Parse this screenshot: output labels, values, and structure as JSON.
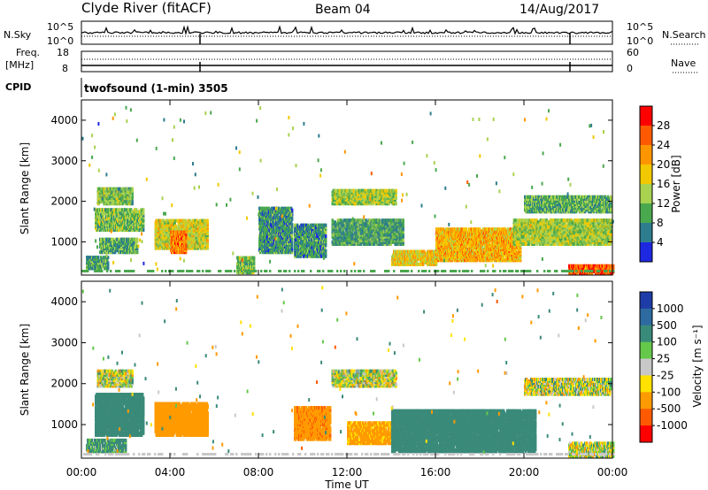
{
  "header": {
    "station": "Clyde River (fitACF)",
    "beam": "Beam 04",
    "date": "14/Aug/2017"
  },
  "top_panels": {
    "nsky_label": "N.Sky",
    "nsky_ticks": [
      "10^5",
      "10^0"
    ],
    "nsky_right_ticks": [
      "10^5",
      "10^0"
    ],
    "nsearch_label": "N.Search",
    "freq_label": "Freq.",
    "freq_unit": "[MHz]",
    "freq_ticks": [
      "18",
      "8"
    ],
    "nave_ticks": [
      "60",
      "0"
    ],
    "nave_label": "Nave",
    "cpid_label": "CPID",
    "cpid_text": "twofsound (1-min) 3505"
  },
  "power_colorbar": {
    "title": "Power [dB]",
    "ticks": [
      "28",
      "24",
      "20",
      "16",
      "12",
      "8",
      "4"
    ],
    "colors": [
      "#ff0000",
      "#ff5a00",
      "#ff9600",
      "#f2c800",
      "#a8d250",
      "#4aa84e",
      "#2d7d8e",
      "#1e28e0"
    ]
  },
  "velocity_colorbar": {
    "title": "Velocity [m s⁻¹]",
    "ticks": [
      "1000",
      "500",
      "100",
      "25",
      "-25",
      "-100",
      "-500",
      "-1000"
    ],
    "colors": [
      "#1e3ca8",
      "#2d6aa0",
      "#3a8a7a",
      "#66c84a",
      "#c8c8c8",
      "#ffe200",
      "#ff9a00",
      "#ff5a00",
      "#ff0000"
    ]
  },
  "chart_data": {
    "type": "heatmap",
    "panels": [
      "Power [dB]",
      "Velocity [m s⁻¹]"
    ],
    "xlabel": "Time UT",
    "x_ticks": [
      "00:00",
      "04:00",
      "08:00",
      "12:00",
      "16:00",
      "20:00",
      "00:00"
    ],
    "xlim_hours": [
      0,
      24
    ],
    "ylabel": "Slant Range [km]",
    "y_ticks": [
      1000,
      2000,
      3000,
      4000
    ],
    "ylim_km": [
      180,
      4500
    ],
    "power_regions": [
      {
        "t0": 0.7,
        "t1": 2.3,
        "r0": 1900,
        "r1": 2300,
        "level": 12
      },
      {
        "t0": 0.6,
        "t1": 2.8,
        "r0": 1250,
        "r1": 1750,
        "level": 12
      },
      {
        "t0": 0.8,
        "t1": 2.5,
        "r0": 700,
        "r1": 1050,
        "level": 10
      },
      {
        "t0": 0.2,
        "t1": 1.2,
        "r0": 300,
        "r1": 600,
        "level": 9
      },
      {
        "t0": 3.3,
        "t1": 5.7,
        "r0": 800,
        "r1": 1500,
        "level": 16
      },
      {
        "t0": 4.0,
        "t1": 4.7,
        "r0": 700,
        "r1": 1200,
        "level": 24
      },
      {
        "t0": 7.0,
        "t1": 7.8,
        "r0": 200,
        "r1": 600,
        "level": 12
      },
      {
        "t0": 8.0,
        "t1": 9.5,
        "r0": 700,
        "r1": 1800,
        "level": 8
      },
      {
        "t0": 9.6,
        "t1": 11.0,
        "r0": 600,
        "r1": 1400,
        "level": 8
      },
      {
        "t0": 11.3,
        "t1": 14.2,
        "r0": 1900,
        "r1": 2250,
        "level": 14
      },
      {
        "t0": 11.3,
        "t1": 14.5,
        "r0": 900,
        "r1": 1500,
        "level": 9
      },
      {
        "t0": 14.0,
        "t1": 16.0,
        "r0": 400,
        "r1": 750,
        "level": 18
      },
      {
        "t0": 16.0,
        "t1": 19.8,
        "r0": 500,
        "r1": 1300,
        "level": 20
      },
      {
        "t0": 19.5,
        "t1": 23.9,
        "r0": 900,
        "r1": 1500,
        "level": 14
      },
      {
        "t0": 20.0,
        "t1": 23.9,
        "r0": 1700,
        "r1": 2100,
        "level": 10
      },
      {
        "t0": 22.0,
        "t1": 24.0,
        "r0": 180,
        "r1": 400,
        "level": 26
      }
    ],
    "velocity_regions": [
      {
        "t0": 0.7,
        "t1": 2.3,
        "r0": 1900,
        "r1": 2300,
        "level": 0
      },
      {
        "t0": 0.2,
        "t1": 2.0,
        "r0": 300,
        "r1": 600,
        "level": 150
      },
      {
        "t0": 0.6,
        "t1": 2.8,
        "r0": 700,
        "r1": 1700,
        "level": 300
      },
      {
        "t0": 3.3,
        "t1": 5.7,
        "r0": 700,
        "r1": 1500,
        "level": -300
      },
      {
        "t0": 9.6,
        "t1": 11.2,
        "r0": 600,
        "r1": 1400,
        "level": -400
      },
      {
        "t0": 11.3,
        "t1": 14.2,
        "r0": 1900,
        "r1": 2300,
        "level": 0
      },
      {
        "t0": 12.0,
        "t1": 14.0,
        "r0": 500,
        "r1": 1000,
        "level": -200
      },
      {
        "t0": 14.0,
        "t1": 20.5,
        "r0": 300,
        "r1": 1300,
        "level": 300
      },
      {
        "t0": 20.0,
        "t1": 23.9,
        "r0": 1700,
        "r1": 2100,
        "level": 0
      },
      {
        "t0": 22.0,
        "t1": 24.0,
        "r0": 180,
        "r1": 500,
        "level": 0
      }
    ]
  }
}
